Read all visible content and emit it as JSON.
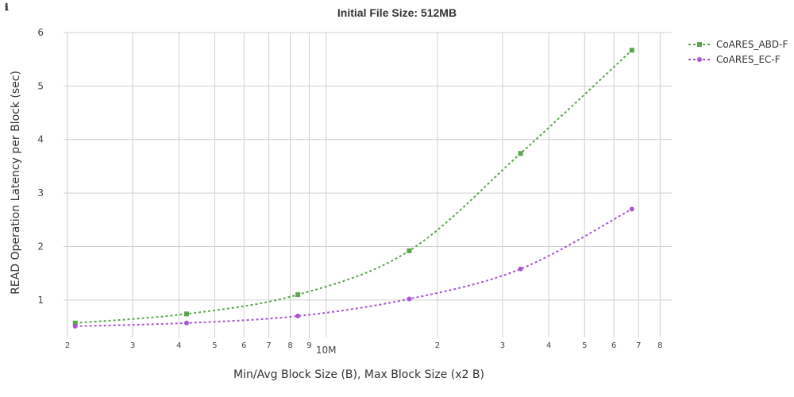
{
  "toolbar": {
    "info_icon": "info-icon",
    "info_glyph": "ℹ"
  },
  "chart_data": {
    "type": "line",
    "title": "Initial File Size: 512MB",
    "xlabel": "Min/Avg Block Size (B), Max Block Size (x2 B)",
    "ylabel": "READ Operation Latency per Block (sec)",
    "xscale": "log",
    "xlim": [
      1950000,
      86000000
    ],
    "ylim": [
      0.3,
      6
    ],
    "grid": true,
    "legend_position": "top-right",
    "x_ticks": [
      {
        "value": 2000000,
        "label": "2",
        "major": false
      },
      {
        "value": 3000000,
        "label": "3",
        "major": false
      },
      {
        "value": 4000000,
        "label": "4",
        "major": false
      },
      {
        "value": 5000000,
        "label": "5",
        "major": false
      },
      {
        "value": 6000000,
        "label": "6",
        "major": false
      },
      {
        "value": 7000000,
        "label": "7",
        "major": false
      },
      {
        "value": 8000000,
        "label": "8",
        "major": false
      },
      {
        "value": 9000000,
        "label": "9",
        "major": false
      },
      {
        "value": 10000000,
        "label": "10M",
        "major": true
      },
      {
        "value": 20000000,
        "label": "2",
        "major": false
      },
      {
        "value": 30000000,
        "label": "3",
        "major": false
      },
      {
        "value": 40000000,
        "label": "4",
        "major": false
      },
      {
        "value": 50000000,
        "label": "5",
        "major": false
      },
      {
        "value": 60000000,
        "label": "6",
        "major": false
      },
      {
        "value": 70000000,
        "label": "7",
        "major": false
      },
      {
        "value": 80000000,
        "label": "8",
        "major": false
      }
    ],
    "y_ticks": [
      {
        "value": 1,
        "label": "1"
      },
      {
        "value": 2,
        "label": "2"
      },
      {
        "value": 3,
        "label": "3"
      },
      {
        "value": 4,
        "label": "4"
      },
      {
        "value": 5,
        "label": "5"
      },
      {
        "value": 6,
        "label": "6"
      }
    ],
    "x": [
      2097152,
      4194304,
      8388608,
      16777216,
      33554432,
      67108864
    ],
    "series": [
      {
        "name": "CoARES_ABD-F",
        "color": "#5aa64a",
        "marker": "square",
        "line_style": "dotted",
        "values": [
          0.57,
          0.74,
          1.1,
          1.92,
          3.74,
          5.67
        ]
      },
      {
        "name": "CoARES_EC-F",
        "color": "#a855d3",
        "marker": "circle",
        "line_style": "dotted",
        "values": [
          0.51,
          0.57,
          0.7,
          1.02,
          1.58,
          2.7
        ]
      }
    ]
  }
}
